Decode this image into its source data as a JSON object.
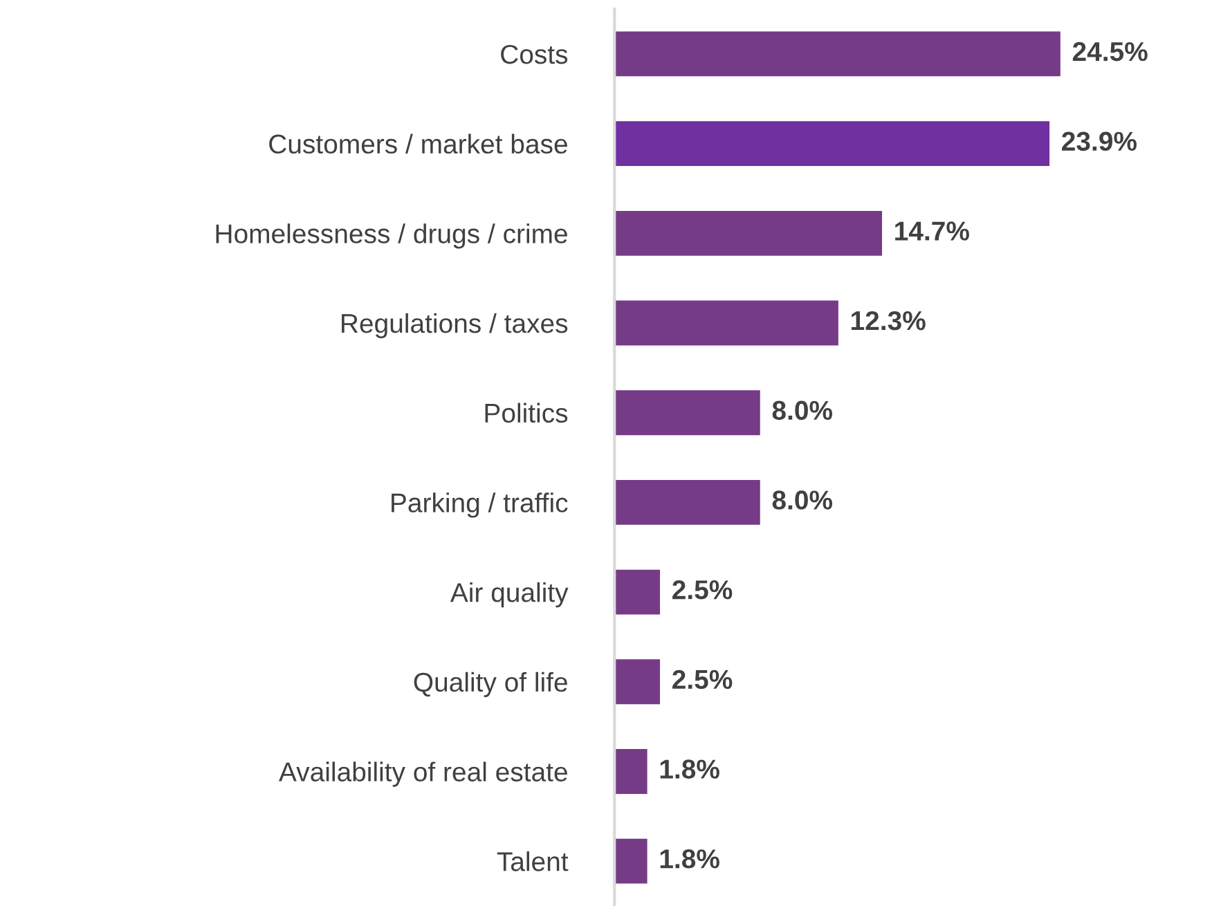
{
  "chart_data": {
    "type": "bar",
    "orientation": "horizontal",
    "categories": [
      "Costs",
      "Customers / market base",
      "Homelessness / drugs / crime",
      "Regulations / taxes",
      "Politics",
      "Parking / traffic",
      "Air quality",
      "Quality of life",
      "Availability of real estate",
      "Talent"
    ],
    "values": [
      24.5,
      23.9,
      14.7,
      12.3,
      8.0,
      8.0,
      2.5,
      2.5,
      1.8,
      1.8
    ],
    "colors": [
      "#763b87",
      "#7030a0",
      "#763b87",
      "#763b87",
      "#763b87",
      "#763b87",
      "#763b87",
      "#763b87",
      "#763b87",
      "#763b87"
    ],
    "value_labels": [
      "24.5%",
      "23.9%",
      "14.7%",
      "12.3%",
      "8.0%",
      "8.0%",
      "2.5%",
      "2.5%",
      "1.8%",
      "1.8%"
    ],
    "grid": false,
    "legend": false
  }
}
